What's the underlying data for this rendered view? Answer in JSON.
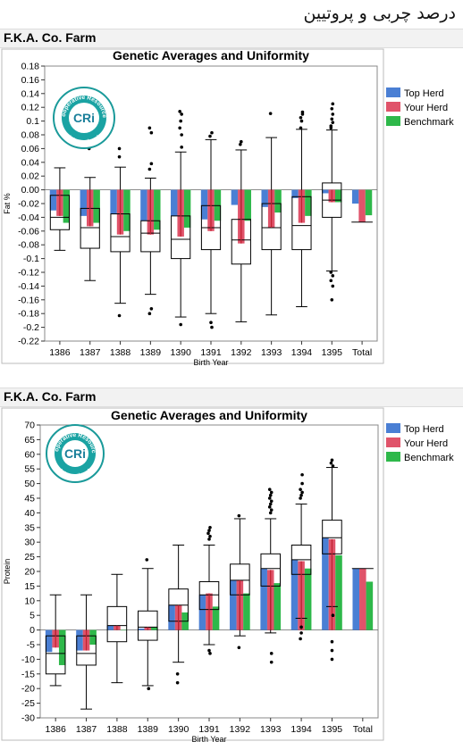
{
  "heading": "درصد چربی و پروتیین",
  "logo": {
    "top_text": "Cooperative Resources",
    "bottom_text": "International",
    "mark": "CRi"
  },
  "colors": {
    "top_herd": "#4a7fd4",
    "your_herd": "#e0536a",
    "benchmark": "#2eb84a",
    "box": "#000000"
  },
  "chart_data": [
    {
      "type": "bar",
      "farm": "F.K.A. Co. Farm",
      "title": "Genetic Averages and Uniformity",
      "xlabel": "Birth Year",
      "ylabel": "Fat %",
      "ylim": [
        -0.22,
        0.18
      ],
      "yticks": [
        -0.22,
        -0.2,
        -0.18,
        -0.16,
        -0.14,
        -0.12,
        -0.1,
        -0.08,
        -0.06,
        -0.04,
        -0.02,
        0.0,
        0.02,
        0.04,
        0.06,
        0.08,
        0.1,
        0.12,
        0.14,
        0.16,
        0.18
      ],
      "ytick_labels": [
        "-0.22",
        "-0.2",
        "-0.18",
        "-0.16",
        "-0.14",
        "-0.12",
        "-0.1",
        "-0.08",
        "-0.06",
        "-0.04",
        "-0.02",
        "0.00",
        "0.02",
        "0.04",
        "0.06",
        "0.08",
        "0.1",
        "0.12",
        "0.14",
        "0.16",
        "0.18"
      ],
      "categories": [
        "1386",
        "1387",
        "1388",
        "1389",
        "1390",
        "1391",
        "1392",
        "1393",
        "1394",
        "1395",
        "Total"
      ],
      "legend": [
        "Top Herd",
        "Your Herd",
        "Benchmark"
      ],
      "series": [
        {
          "name": "Top Herd",
          "values": [
            -0.03,
            -0.038,
            -0.035,
            -0.045,
            -0.038,
            -0.043,
            -0.022,
            -0.025,
            -0.012,
            -0.005,
            -0.02
          ]
        },
        {
          "name": "Your Herd",
          "values": [
            -0.038,
            -0.053,
            -0.065,
            -0.065,
            -0.068,
            -0.06,
            -0.078,
            -0.055,
            -0.048,
            -0.018,
            -0.047
          ]
        },
        {
          "name": "Benchmark",
          "values": [
            -0.048,
            -0.048,
            -0.06,
            -0.058,
            -0.055,
            -0.045,
            -0.045,
            -0.033,
            -0.038,
            -0.018,
            -0.037
          ]
        }
      ],
      "boxes": [
        {
          "min": -0.088,
          "q1": -0.058,
          "median": -0.04,
          "q3": -0.008,
          "max": 0.032,
          "outliers": []
        },
        {
          "min": -0.132,
          "q1": -0.085,
          "median": -0.055,
          "q3": -0.027,
          "max": 0.018,
          "outliers": [
            0.06
          ]
        },
        {
          "min": -0.165,
          "q1": -0.09,
          "median": -0.068,
          "q3": -0.035,
          "max": 0.033,
          "outliers": [
            0.06,
            0.048,
            -0.183
          ]
        },
        {
          "min": -0.152,
          "q1": -0.09,
          "median": -0.063,
          "q3": -0.045,
          "max": 0.017,
          "outliers": [
            0.09,
            0.083,
            0.038,
            0.03,
            -0.173,
            -0.18
          ]
        },
        {
          "min": -0.185,
          "q1": -0.1,
          "median": -0.072,
          "q3": -0.038,
          "max": 0.055,
          "outliers": [
            0.114,
            0.11,
            0.1,
            0.09,
            0.08,
            0.062,
            -0.196
          ]
        },
        {
          "min": -0.18,
          "q1": -0.087,
          "median": -0.055,
          "q3": -0.023,
          "max": 0.073,
          "outliers": [
            0.083,
            0.078,
            -0.193,
            -0.2
          ]
        },
        {
          "min": -0.192,
          "q1": -0.108,
          "median": -0.073,
          "q3": -0.043,
          "max": 0.058,
          "outliers": [
            0.07,
            0.066
          ]
        },
        {
          "min": -0.182,
          "q1": -0.087,
          "median": -0.055,
          "q3": -0.02,
          "max": 0.076,
          "outliers": [
            0.111
          ]
        },
        {
          "min": -0.17,
          "q1": -0.087,
          "median": -0.052,
          "q3": -0.01,
          "max": 0.088,
          "outliers": [
            0.113,
            0.11,
            0.105,
            0.1,
            0.09
          ]
        },
        {
          "min": -0.118,
          "q1": -0.04,
          "median": -0.015,
          "q3": 0.01,
          "max": 0.087,
          "outliers": [
            0.125,
            0.118,
            0.11,
            0.103,
            0.098,
            0.093,
            0.09,
            -0.12,
            -0.125,
            -0.132,
            -0.14,
            -0.16
          ]
        },
        null
      ],
      "total_marker": -0.047
    },
    {
      "type": "bar",
      "farm": "F.K.A. Co. Farm",
      "title": "Genetic Averages and Uniformity",
      "xlabel": "Birth Year",
      "ylabel": "Protein",
      "ylim": [
        -30,
        70
      ],
      "yticks": [
        -30,
        -25,
        -20,
        -15,
        -10,
        -5,
        0,
        5,
        10,
        15,
        20,
        25,
        30,
        35,
        40,
        45,
        50,
        55,
        60,
        65,
        70
      ],
      "ytick_labels": [
        "-30",
        "-25",
        "-20",
        "-15",
        "-10",
        "-5",
        "0",
        "5",
        "10",
        "15",
        "20",
        "25",
        "30",
        "35",
        "40",
        "45",
        "50",
        "55",
        "60",
        "65",
        "70"
      ],
      "categories": [
        "1386",
        "1387",
        "1388",
        "1389",
        "1390",
        "1391",
        "1392",
        "1393",
        "1394",
        "1395",
        "Total"
      ],
      "legend": [
        "Top Herd",
        "Your Herd",
        "Benchmark"
      ],
      "series": [
        {
          "name": "Top Herd",
          "values": [
            -7.5,
            -7,
            1.5,
            0.5,
            8.5,
            12,
            17,
            21,
            24,
            31.5,
            21
          ]
        },
        {
          "name": "Your Herd",
          "values": [
            -6,
            -7,
            1.5,
            1,
            8.5,
            12.5,
            17,
            20.5,
            23.5,
            31,
            21
          ]
        },
        {
          "name": "Benchmark",
          "values": [
            -12,
            -5,
            0,
            1,
            6,
            8,
            12.5,
            16,
            21,
            25.5,
            16.5
          ]
        }
      ],
      "boxes": [
        {
          "min": -19,
          "q1": -15,
          "median": -8,
          "q3": -2,
          "max": 12,
          "outliers": []
        },
        {
          "min": -27,
          "q1": -12,
          "median": -8,
          "q3": -2,
          "max": 12,
          "outliers": []
        },
        {
          "min": -18,
          "q1": -4,
          "median": 1.5,
          "q3": 8,
          "max": 19,
          "outliers": []
        },
        {
          "min": -19,
          "q1": -3.5,
          "median": 1,
          "q3": 6.5,
          "max": 21,
          "outliers": [
            24,
            -20
          ]
        },
        {
          "min": -11,
          "q1": 3,
          "median": 8.5,
          "q3": 14,
          "max": 29,
          "outliers": [
            -15,
            -18
          ]
        },
        {
          "min": -5,
          "q1": 7,
          "median": 12,
          "q3": 16.5,
          "max": 29,
          "outliers": [
            35,
            34,
            33,
            32,
            31,
            -7,
            -8
          ]
        },
        {
          "min": -2,
          "q1": 12,
          "median": 17,
          "q3": 22.5,
          "max": 38,
          "outliers": [
            39,
            -6
          ]
        },
        {
          "min": -1,
          "q1": 15,
          "median": 21,
          "q3": 26,
          "max": 38,
          "outliers": [
            48,
            47,
            46,
            45,
            44,
            43,
            42,
            41,
            40,
            -8,
            -11
          ]
        },
        {
          "min": 4,
          "q1": 19,
          "median": 24,
          "q3": 29,
          "max": 43,
          "outliers": [
            53,
            50,
            48,
            47,
            46,
            45,
            1,
            -1,
            -3
          ]
        },
        {
          "min": 8,
          "q1": 26,
          "median": 31.5,
          "q3": 37.5,
          "max": 55.5,
          "outliers": [
            58,
            57,
            56,
            5,
            -4,
            -7,
            -10
          ]
        },
        null
      ],
      "total_marker": 21
    }
  ]
}
